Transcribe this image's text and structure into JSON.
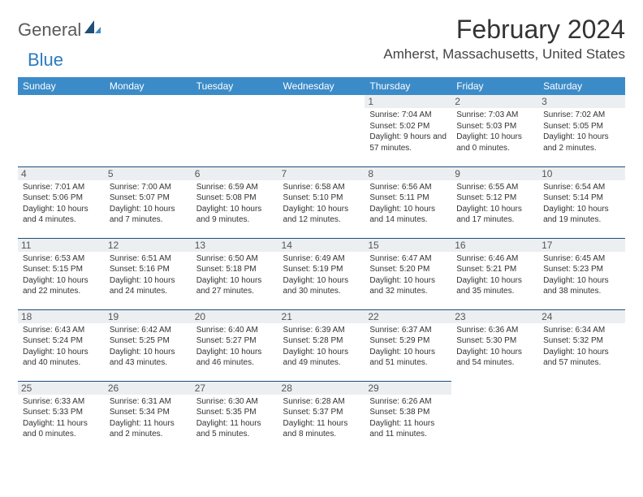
{
  "logo": {
    "part1": "General",
    "part2": "Blue"
  },
  "title": "February 2024",
  "location": "Amherst, Massachusetts, United States",
  "header_bg": "#3b8bc8",
  "day_names": [
    "Sunday",
    "Monday",
    "Tuesday",
    "Wednesday",
    "Thursday",
    "Friday",
    "Saturday"
  ],
  "weeks": [
    [
      null,
      null,
      null,
      null,
      {
        "n": "1",
        "sr": "7:04 AM",
        "ss": "5:02 PM",
        "dl": "9 hours and 57 minutes."
      },
      {
        "n": "2",
        "sr": "7:03 AM",
        "ss": "5:03 PM",
        "dl": "10 hours and 0 minutes."
      },
      {
        "n": "3",
        "sr": "7:02 AM",
        "ss": "5:05 PM",
        "dl": "10 hours and 2 minutes."
      }
    ],
    [
      {
        "n": "4",
        "sr": "7:01 AM",
        "ss": "5:06 PM",
        "dl": "10 hours and 4 minutes."
      },
      {
        "n": "5",
        "sr": "7:00 AM",
        "ss": "5:07 PM",
        "dl": "10 hours and 7 minutes."
      },
      {
        "n": "6",
        "sr": "6:59 AM",
        "ss": "5:08 PM",
        "dl": "10 hours and 9 minutes."
      },
      {
        "n": "7",
        "sr": "6:58 AM",
        "ss": "5:10 PM",
        "dl": "10 hours and 12 minutes."
      },
      {
        "n": "8",
        "sr": "6:56 AM",
        "ss": "5:11 PM",
        "dl": "10 hours and 14 minutes."
      },
      {
        "n": "9",
        "sr": "6:55 AM",
        "ss": "5:12 PM",
        "dl": "10 hours and 17 minutes."
      },
      {
        "n": "10",
        "sr": "6:54 AM",
        "ss": "5:14 PM",
        "dl": "10 hours and 19 minutes."
      }
    ],
    [
      {
        "n": "11",
        "sr": "6:53 AM",
        "ss": "5:15 PM",
        "dl": "10 hours and 22 minutes."
      },
      {
        "n": "12",
        "sr": "6:51 AM",
        "ss": "5:16 PM",
        "dl": "10 hours and 24 minutes."
      },
      {
        "n": "13",
        "sr": "6:50 AM",
        "ss": "5:18 PM",
        "dl": "10 hours and 27 minutes."
      },
      {
        "n": "14",
        "sr": "6:49 AM",
        "ss": "5:19 PM",
        "dl": "10 hours and 30 minutes."
      },
      {
        "n": "15",
        "sr": "6:47 AM",
        "ss": "5:20 PM",
        "dl": "10 hours and 32 minutes."
      },
      {
        "n": "16",
        "sr": "6:46 AM",
        "ss": "5:21 PM",
        "dl": "10 hours and 35 minutes."
      },
      {
        "n": "17",
        "sr": "6:45 AM",
        "ss": "5:23 PM",
        "dl": "10 hours and 38 minutes."
      }
    ],
    [
      {
        "n": "18",
        "sr": "6:43 AM",
        "ss": "5:24 PM",
        "dl": "10 hours and 40 minutes."
      },
      {
        "n": "19",
        "sr": "6:42 AM",
        "ss": "5:25 PM",
        "dl": "10 hours and 43 minutes."
      },
      {
        "n": "20",
        "sr": "6:40 AM",
        "ss": "5:27 PM",
        "dl": "10 hours and 46 minutes."
      },
      {
        "n": "21",
        "sr": "6:39 AM",
        "ss": "5:28 PM",
        "dl": "10 hours and 49 minutes."
      },
      {
        "n": "22",
        "sr": "6:37 AM",
        "ss": "5:29 PM",
        "dl": "10 hours and 51 minutes."
      },
      {
        "n": "23",
        "sr": "6:36 AM",
        "ss": "5:30 PM",
        "dl": "10 hours and 54 minutes."
      },
      {
        "n": "24",
        "sr": "6:34 AM",
        "ss": "5:32 PM",
        "dl": "10 hours and 57 minutes."
      }
    ],
    [
      {
        "n": "25",
        "sr": "6:33 AM",
        "ss": "5:33 PM",
        "dl": "11 hours and 0 minutes."
      },
      {
        "n": "26",
        "sr": "6:31 AM",
        "ss": "5:34 PM",
        "dl": "11 hours and 2 minutes."
      },
      {
        "n": "27",
        "sr": "6:30 AM",
        "ss": "5:35 PM",
        "dl": "11 hours and 5 minutes."
      },
      {
        "n": "28",
        "sr": "6:28 AM",
        "ss": "5:37 PM",
        "dl": "11 hours and 8 minutes."
      },
      {
        "n": "29",
        "sr": "6:26 AM",
        "ss": "5:38 PM",
        "dl": "11 hours and 11 minutes."
      },
      null,
      null
    ]
  ],
  "labels": {
    "sunrise": "Sunrise: ",
    "sunset": "Sunset: ",
    "daylight": "Daylight: "
  }
}
